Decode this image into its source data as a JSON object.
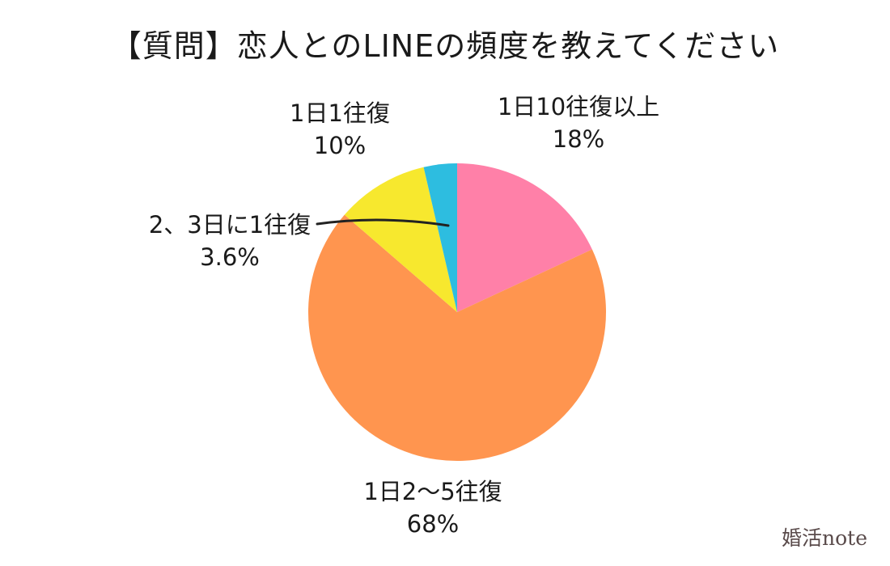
{
  "chart_data": {
    "type": "pie",
    "title": "【質問】恋人とのLINEの頻度を教えてください",
    "slices": [
      {
        "label": "1日10往復以上",
        "value": 18,
        "value_label": "18%",
        "color": "#FF80A8"
      },
      {
        "label": "1日2〜5往復",
        "value": 68,
        "value_label": "68%",
        "color": "#FF954F"
      },
      {
        "label": "1日1往復",
        "value": 10,
        "value_label": "10%",
        "color": "#F7E82E"
      },
      {
        "label": "2、3日に1往復",
        "value": 3.6,
        "value_label": "3.6%",
        "color": "#2DBDE0"
      }
    ],
    "legend": "none",
    "start": "top",
    "direction": "clockwise"
  },
  "labels": [
    {
      "name": "1日10往復以上",
      "pct": "18%"
    },
    {
      "name": "1日1往復",
      "pct": "10%"
    },
    {
      "name": "2、3日に1往復",
      "pct": "3.6%"
    },
    {
      "name": "1日2〜5往復",
      "pct": "68%"
    }
  ],
  "brand": "婚活note"
}
